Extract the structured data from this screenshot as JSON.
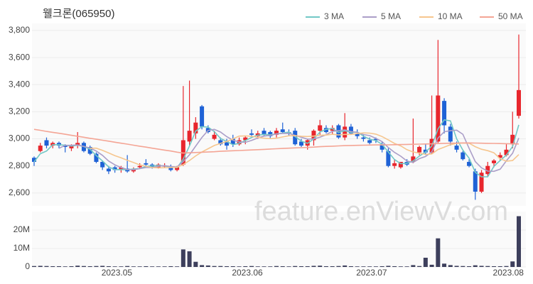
{
  "chart_data": [
    {
      "type": "candlestick",
      "title": "웰크론(065950)",
      "open": [
        2860,
        2910,
        2990,
        2950,
        2970,
        2950,
        2930,
        2950,
        2970,
        2940,
        2890,
        2830,
        2780,
        2790,
        2770,
        2780,
        2760,
        2790,
        2820,
        2810,
        2790,
        2800,
        2790,
        2770,
        2810,
        2980,
        3040,
        3240,
        3080,
        3000,
        2990,
        2980,
        3000,
        2960,
        2990,
        3040,
        3020,
        3060,
        3050,
        3030,
        3070,
        3050,
        3060,
        2980,
        2950,
        2990,
        3060,
        3080,
        3060,
        3100,
        3010,
        3090,
        3040,
        3010,
        2990,
        3000,
        2960,
        2910,
        2800,
        2790,
        2830,
        2830,
        2900,
        2920,
        2900,
        2980,
        3280,
        3090,
        2950,
        2900,
        2830,
        2760,
        2610,
        2740,
        2820,
        2860,
        2880,
        2960,
        3170
      ],
      "high": [
        2870,
        2970,
        3010,
        2980,
        2980,
        2960,
        2960,
        3050,
        2980,
        2950,
        2900,
        2840,
        2800,
        2800,
        2800,
        2880,
        2790,
        2820,
        2850,
        2820,
        2820,
        2820,
        2810,
        2800,
        3390,
        3430,
        3160,
        3250,
        3100,
        3060,
        3010,
        3000,
        3030,
        3010,
        3020,
        3070,
        3060,
        3080,
        3060,
        3080,
        3120,
        3070,
        3080,
        3000,
        3000,
        3070,
        3140,
        3100,
        3100,
        3110,
        3190,
        3110,
        3070,
        3030,
        3010,
        3010,
        2980,
        2930,
        2850,
        2830,
        2850,
        3150,
        2950,
        2960,
        3320,
        3730,
        3300,
        3110,
        2980,
        2910,
        2850,
        2780,
        2770,
        2830,
        2850,
        2900,
        2960,
        3200,
        3770
      ],
      "low": [
        2800,
        2900,
        2930,
        2930,
        2930,
        2900,
        2910,
        2930,
        2900,
        2880,
        2820,
        2770,
        2740,
        2750,
        2750,
        2750,
        2750,
        2780,
        2800,
        2780,
        2780,
        2790,
        2760,
        2760,
        2800,
        2950,
        3000,
        3070,
        3040,
        2990,
        2950,
        2920,
        2940,
        2950,
        2960,
        3010,
        3000,
        3020,
        3000,
        3010,
        3040,
        3020,
        2950,
        2940,
        2920,
        2950,
        3030,
        3040,
        3030,
        3000,
        2990,
        3030,
        3000,
        2980,
        2960,
        2970,
        2900,
        2790,
        2780,
        2780,
        2800,
        2820,
        2880,
        2880,
        2890,
        2970,
        3040,
        2950,
        2900,
        2840,
        2790,
        2550,
        2600,
        2720,
        2790,
        2840,
        2870,
        2930,
        3150
      ],
      "close": [
        2830,
        2950,
        2950,
        2970,
        2950,
        2940,
        2950,
        2970,
        2910,
        2890,
        2830,
        2790,
        2760,
        2770,
        2790,
        2760,
        2780,
        2800,
        2810,
        2790,
        2810,
        2800,
        2770,
        2790,
        2990,
        3060,
        3120,
        3090,
        3050,
        3030,
        2960,
        2950,
        2960,
        2990,
        3010,
        3030,
        3040,
        3030,
        3020,
        3060,
        3050,
        3040,
        2960,
        2950,
        2990,
        3060,
        3100,
        3050,
        3080,
        3010,
        3090,
        3040,
        3020,
        3000,
        2970,
        2990,
        2920,
        2800,
        2820,
        2830,
        2810,
        2870,
        2940,
        2900,
        3000,
        3320,
        3100,
        2980,
        2920,
        2850,
        2800,
        2610,
        2750,
        2800,
        2840,
        2880,
        2920,
        3030,
        3360
      ],
      "up_color": "#e8262d",
      "down_color": "#1f62d6",
      "series": [
        {
          "name": "3 MA",
          "color": "#72c8c6",
          "values": [
            2830,
            2890,
            2910,
            2957,
            2957,
            2953,
            2947,
            2953,
            2943,
            2923,
            2877,
            2837,
            2793,
            2773,
            2773,
            2773,
            2777,
            2780,
            2797,
            2800,
            2803,
            2800,
            2793,
            2787,
            2850,
            2947,
            3057,
            3090,
            3087,
            3053,
            3003,
            2980,
            2957,
            2967,
            2987,
            3010,
            3027,
            3033,
            3030,
            3037,
            3043,
            3050,
            3017,
            2983,
            2967,
            3000,
            3050,
            3070,
            3077,
            3047,
            3060,
            3047,
            3050,
            3020,
            2997,
            2987,
            2960,
            2903,
            2847,
            2817,
            2820,
            2837,
            2873,
            2903,
            2947,
            3073,
            3140,
            3133,
            3000,
            2917,
            2857,
            2753,
            2720,
            2720,
            2797,
            2840,
            2880,
            2943,
            3103
          ]
        },
        {
          "name": "5 MA",
          "color": "#ab9ec8",
          "values": [
            null,
            null,
            null,
            null,
            2930,
            2952,
            2952,
            2956,
            2944,
            2932,
            2910,
            2878,
            2836,
            2808,
            2788,
            2774,
            2772,
            2780,
            2788,
            2788,
            2798,
            2802,
            2796,
            2792,
            2832,
            2882,
            2946,
            3010,
            3062,
            3070,
            3050,
            3016,
            2990,
            2978,
            2974,
            2988,
            3006,
            3020,
            3026,
            3036,
            3040,
            3040,
            3026,
            3012,
            2998,
            3000,
            3012,
            3030,
            3056,
            3060,
            3066,
            3054,
            3048,
            3032,
            3024,
            3004,
            2980,
            2936,
            2900,
            2872,
            2836,
            2826,
            2854,
            2870,
            2904,
            3006,
            3052,
            3060,
            3064,
            3034,
            2930,
            2832,
            2786,
            2762,
            2760,
            2776,
            2838,
            2894,
            3006
          ]
        },
        {
          "name": "10 MA",
          "color": "#f6c68e",
          "values": [
            null,
            null,
            null,
            null,
            null,
            null,
            null,
            null,
            null,
            2931,
            2931,
            2915,
            2896,
            2876,
            2860,
            2842,
            2825,
            2808,
            2798,
            2788,
            2786,
            2787,
            2788,
            2790,
            2810,
            2840,
            2874,
            2903,
            2927,
            2951,
            2966,
            2981,
            3000,
            3020,
            3022,
            3019,
            3011,
            3005,
            3002,
            3005,
            3014,
            3023,
            3023,
            3019,
            3017,
            3020,
            3026,
            3028,
            3034,
            3029,
            3033,
            3033,
            3039,
            3044,
            3042,
            3035,
            3017,
            2992,
            2966,
            2948,
            2920,
            2903,
            2895,
            2885,
            2888,
            2921,
            2939,
            2957,
            2967,
            2969,
            2968,
            2942,
            2923,
            2913,
            2897,
            2853,
            2835,
            2840,
            2884
          ]
        },
        {
          "name": "50 MA",
          "color": "#f4a595",
          "values": [
            3070,
            3063,
            3055,
            3048,
            3041,
            3034,
            3026,
            3019,
            3012,
            3004,
            2997,
            2990,
            2983,
            2975,
            2968,
            2961,
            2953,
            2946,
            2939,
            2931,
            2924,
            2917,
            2910,
            2902,
            2895,
            2897,
            2899,
            2901,
            2903,
            2905,
            2908,
            2910,
            2912,
            2914,
            2916,
            2918,
            2920,
            2922,
            2925,
            2927,
            2929,
            2931,
            2933,
            2935,
            2937,
            2939,
            2942,
            2944,
            2946,
            2948,
            2950,
            2951,
            2952,
            2953,
            2954,
            2955,
            2955,
            2956,
            2957,
            2958,
            2959,
            2960,
            2961,
            2962,
            2963,
            2965,
            2967,
            2968,
            2969,
            2970,
            2970,
            2969,
            2968,
            2967,
            2966,
            2965,
            2964,
            2963,
            2962
          ]
        }
      ],
      "ylim": [
        2505,
        3852
      ],
      "yticks": [
        {
          "value": 2600,
          "label": "2,600"
        },
        {
          "value": 2800,
          "label": "2,800"
        },
        {
          "value": 3000,
          "label": "3,000"
        },
        {
          "value": 3200,
          "label": "3,200"
        },
        {
          "value": 3400,
          "label": "3,400"
        },
        {
          "value": 3600,
          "label": "3,600"
        },
        {
          "value": 3800,
          "label": "3,800"
        }
      ],
      "grid": true,
      "legend": "top-right"
    },
    {
      "type": "bar",
      "color": "#3d3f5c",
      "categories": [
        null,
        null,
        null,
        null,
        null,
        null,
        null,
        null,
        null,
        null,
        null,
        null,
        null,
        null,
        "2023.05",
        null,
        null,
        null,
        null,
        null,
        null,
        null,
        null,
        null,
        null,
        null,
        null,
        null,
        null,
        null,
        null,
        null,
        null,
        null,
        null,
        "2023.06",
        null,
        null,
        null,
        null,
        null,
        null,
        null,
        null,
        null,
        null,
        null,
        null,
        null,
        null,
        null,
        null,
        null,
        null,
        null,
        "2023.07",
        null,
        null,
        null,
        null,
        null,
        null,
        null,
        null,
        null,
        null,
        null,
        null,
        null,
        null,
        null,
        null,
        null,
        null,
        null,
        null,
        null,
        "2023.08",
        null
      ],
      "values": [
        500000,
        600000,
        500000,
        400000,
        400000,
        300000,
        400000,
        700000,
        500000,
        400000,
        500000,
        600000,
        400000,
        300000,
        300000,
        500000,
        300000,
        300000,
        400000,
        300000,
        300000,
        300000,
        400000,
        300000,
        9500000,
        8500000,
        2800000,
        1000000,
        800000,
        500000,
        500000,
        400000,
        400000,
        300000,
        400000,
        500000,
        300000,
        300000,
        300000,
        500000,
        400000,
        300000,
        500000,
        400000,
        400000,
        600000,
        700000,
        400000,
        400000,
        500000,
        800000,
        400000,
        300000,
        300000,
        300000,
        300000,
        400000,
        600000,
        400000,
        300000,
        300000,
        1000000,
        500000,
        5000000,
        1200000,
        15500000,
        1800000,
        1000000,
        600000,
        500000,
        400000,
        900000,
        600000,
        500000,
        400000,
        400000,
        500000,
        3000000,
        27500000
      ],
      "ylim": [
        0,
        30000000
      ],
      "yticks": [
        0,
        {
          "value": 10000000,
          "label": "10M"
        },
        {
          "value": 20000000,
          "label": "20M"
        }
      ],
      "grid": true
    }
  ],
  "watermark": "feature.enViewV.com"
}
